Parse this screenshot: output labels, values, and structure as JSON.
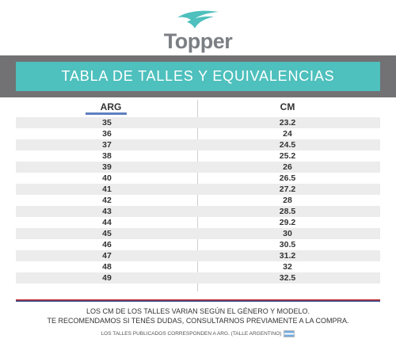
{
  "brand": {
    "name": "Topper",
    "logo_icon": "topper-swoosh-icon",
    "accent": "#4ec0bd"
  },
  "title": "TABLA DE TALLES Y EQUIVALENCIAS",
  "table": {
    "headers": {
      "arg": "ARG",
      "cm": "CM"
    },
    "rows": [
      {
        "arg": "35",
        "cm": "23.2"
      },
      {
        "arg": "36",
        "cm": "24"
      },
      {
        "arg": "37",
        "cm": "24.5"
      },
      {
        "arg": "38",
        "cm": "25.2"
      },
      {
        "arg": "39",
        "cm": "26"
      },
      {
        "arg": "40",
        "cm": "26.5"
      },
      {
        "arg": "41",
        "cm": "27.2"
      },
      {
        "arg": "42",
        "cm": "28"
      },
      {
        "arg": "43",
        "cm": "28.5"
      },
      {
        "arg": "44",
        "cm": "29.2"
      },
      {
        "arg": "45",
        "cm": "30"
      },
      {
        "arg": "46",
        "cm": "30.5"
      },
      {
        "arg": "47",
        "cm": "31.2"
      },
      {
        "arg": "48",
        "cm": "32"
      },
      {
        "arg": "49",
        "cm": "32.5"
      }
    ]
  },
  "footer": {
    "line1": "LOS CM DE LOS TALLES VARIAN SEGÚN EL GÉNERO Y MODELO.",
    "line2": "TE RECOMENDAMOS SI TENÉS DUDAS, CONSULTARNOS PREVIAMENTE A LA COMPRA.",
    "note": "LOS TALLES PUBLICADOS CORRESPONDEN A ARG. (TALLE ARGENTINO)",
    "flag_icon": "argentina-flag-icon"
  }
}
